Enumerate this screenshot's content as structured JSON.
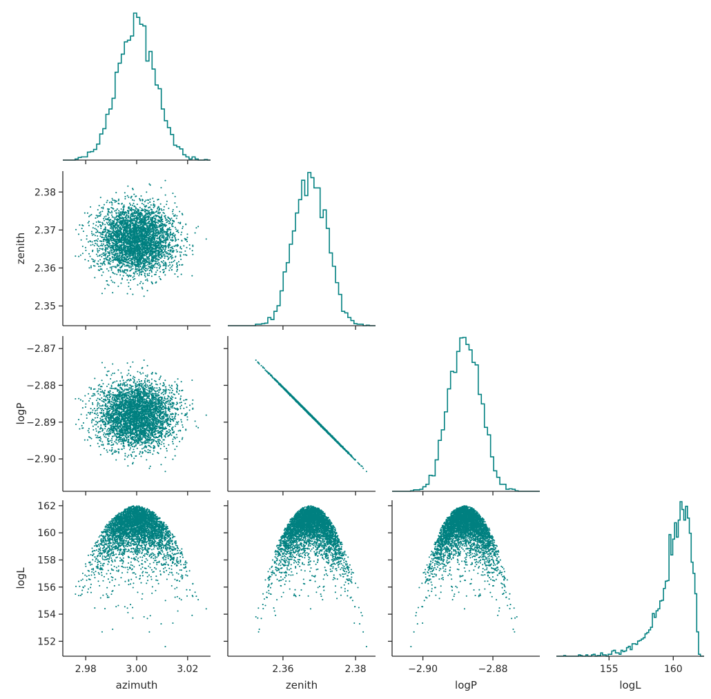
{
  "colors": {
    "accent": "#008080",
    "axis": "#262626",
    "background": "#ffffff"
  },
  "chart_data": {
    "type": "corner",
    "variables": [
      {
        "name": "azimuth",
        "label": "azimuth",
        "range": [
          2.971,
          3.029
        ],
        "ticks": [
          2.98,
          3.0,
          3.02
        ],
        "tick_labels": [
          "2.98",
          "3.00",
          "3.02"
        ]
      },
      {
        "name": "zenith",
        "label": "zenith",
        "range": [
          2.3448,
          2.3855
        ],
        "ticks": [
          2.35,
          2.36,
          2.37,
          2.38
        ],
        "tick_labels": [
          "2.35",
          "2.36",
          "2.37",
          "2.38"
        ],
        "x_ticks": [
          2.36,
          2.38
        ],
        "x_tick_labels": [
          "2.36",
          "2.38"
        ]
      },
      {
        "name": "logP",
        "label": "logP",
        "range": [
          -2.9088,
          -2.8666
        ],
        "ticks": [
          -2.9,
          -2.89,
          -2.88,
          -2.87
        ],
        "tick_labels": [
          "−2.90",
          "−2.89",
          "−2.88",
          "−2.87"
        ],
        "x_ticks": [
          -2.9,
          -2.88
        ],
        "x_tick_labels": [
          "−2.90",
          "−2.88"
        ]
      },
      {
        "name": "logL",
        "label": "logL",
        "range": [
          150.9,
          162.4
        ],
        "ticks": [
          152,
          154,
          156,
          158,
          160,
          162
        ],
        "tick_labels": [
          "152",
          "154",
          "156",
          "158",
          "160",
          "162"
        ],
        "x_ticks": [
          155,
          160
        ],
        "x_tick_labels": [
          "155",
          "160"
        ]
      }
    ],
    "marginals": {
      "azimuth": {
        "mean": 3.0,
        "std": 0.0075,
        "bins": 48
      },
      "zenith": {
        "mean": 2.3675,
        "std": 0.0044,
        "bins": 48
      },
      "logP": {
        "mean": -2.888,
        "std": 0.0044,
        "bins": 48
      },
      "logL": {
        "peak": 162.0,
        "min": 151.4,
        "bins": 80
      }
    },
    "relations": {
      "logP_vs_zenith": "linear, logP decreases as zenith increases",
      "logL_vs_params": "parabolic cap with maximum 162.0 at the mean of each parameter"
    },
    "n_points": 4000,
    "grid": false,
    "legend": "none"
  }
}
